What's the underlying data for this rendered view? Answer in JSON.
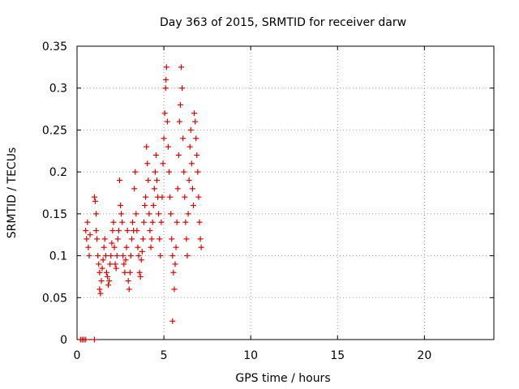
{
  "chart_data": {
    "type": "scatter",
    "title": "Day 363 of 2015, SRMTID for receiver darw",
    "xlabel": "GPS time / hours",
    "ylabel": "SRMTID / TECUs",
    "xlim": [
      0,
      24
    ],
    "ylim": [
      0,
      0.35
    ],
    "grid": true,
    "marker": "+",
    "xticks": [
      0,
      5,
      10,
      15,
      20
    ],
    "xtick_labels": [
      "0",
      "5",
      "10",
      "15",
      "20"
    ],
    "yticks": [
      0,
      0.05,
      0.1,
      0.15,
      0.2,
      0.25,
      0.3,
      0.35
    ],
    "ytick_labels": [
      "0",
      "0.05",
      "0.1",
      "0.15",
      "0.2",
      "0.25",
      "0.3",
      "0.35"
    ],
    "series": [
      {
        "name": "SRMTID",
        "color": "#e00000",
        "points": [
          [
            0.2,
            0.0
          ],
          [
            0.3,
            0.0
          ],
          [
            0.4,
            0.0
          ],
          [
            0.5,
            0.0
          ],
          [
            1.0,
            0.0
          ],
          [
            0.5,
            0.13
          ],
          [
            0.55,
            0.12
          ],
          [
            0.6,
            0.14
          ],
          [
            0.65,
            0.11
          ],
          [
            0.7,
            0.1
          ],
          [
            0.75,
            0.125
          ],
          [
            1.0,
            0.17
          ],
          [
            1.05,
            0.165
          ],
          [
            1.1,
            0.15
          ],
          [
            1.1,
            0.13
          ],
          [
            1.15,
            0.12
          ],
          [
            1.2,
            0.1
          ],
          [
            1.25,
            0.09
          ],
          [
            1.3,
            0.08
          ],
          [
            1.3,
            0.06
          ],
          [
            1.35,
            0.055
          ],
          [
            1.4,
            0.07
          ],
          [
            1.45,
            0.085
          ],
          [
            1.5,
            0.095
          ],
          [
            1.55,
            0.11
          ],
          [
            1.6,
            0.12
          ],
          [
            1.65,
            0.1
          ],
          [
            1.7,
            0.08
          ],
          [
            1.75,
            0.075
          ],
          [
            1.8,
            0.065
          ],
          [
            1.85,
            0.07
          ],
          [
            1.9,
            0.09
          ],
          [
            1.95,
            0.1
          ],
          [
            2.0,
            0.115
          ],
          [
            2.05,
            0.13
          ],
          [
            2.1,
            0.14
          ],
          [
            2.15,
            0.11
          ],
          [
            2.2,
            0.09
          ],
          [
            2.25,
            0.085
          ],
          [
            2.3,
            0.1
          ],
          [
            2.35,
            0.12
          ],
          [
            2.4,
            0.13
          ],
          [
            2.45,
            0.19
          ],
          [
            2.5,
            0.16
          ],
          [
            2.55,
            0.15
          ],
          [
            2.6,
            0.14
          ],
          [
            2.65,
            0.1
          ],
          [
            2.7,
            0.09
          ],
          [
            2.75,
            0.08
          ],
          [
            2.8,
            0.095
          ],
          [
            2.85,
            0.11
          ],
          [
            2.9,
            0.13
          ],
          [
            2.95,
            0.07
          ],
          [
            3.0,
            0.06
          ],
          [
            3.05,
            0.08
          ],
          [
            3.1,
            0.1
          ],
          [
            3.15,
            0.12
          ],
          [
            3.2,
            0.14
          ],
          [
            3.25,
            0.13
          ],
          [
            3.3,
            0.18
          ],
          [
            3.35,
            0.2
          ],
          [
            3.4,
            0.15
          ],
          [
            3.45,
            0.13
          ],
          [
            3.5,
            0.11
          ],
          [
            3.55,
            0.1
          ],
          [
            3.6,
            0.08
          ],
          [
            3.65,
            0.075
          ],
          [
            3.7,
            0.095
          ],
          [
            3.75,
            0.105
          ],
          [
            3.8,
            0.12
          ],
          [
            3.85,
            0.14
          ],
          [
            3.9,
            0.16
          ],
          [
            3.95,
            0.17
          ],
          [
            4.0,
            0.23
          ],
          [
            4.05,
            0.21
          ],
          [
            4.1,
            0.19
          ],
          [
            4.15,
            0.15
          ],
          [
            4.2,
            0.13
          ],
          [
            4.25,
            0.11
          ],
          [
            4.3,
            0.12
          ],
          [
            4.35,
            0.14
          ],
          [
            4.4,
            0.16
          ],
          [
            4.45,
            0.18
          ],
          [
            4.5,
            0.2
          ],
          [
            4.55,
            0.22
          ],
          [
            4.6,
            0.19
          ],
          [
            4.65,
            0.17
          ],
          [
            4.7,
            0.15
          ],
          [
            4.75,
            0.12
          ],
          [
            4.8,
            0.1
          ],
          [
            4.85,
            0.14
          ],
          [
            4.9,
            0.17
          ],
          [
            4.95,
            0.21
          ],
          [
            5.0,
            0.24
          ],
          [
            5.05,
            0.27
          ],
          [
            5.1,
            0.3
          ],
          [
            5.12,
            0.31
          ],
          [
            5.15,
            0.325
          ],
          [
            5.2,
            0.26
          ],
          [
            5.25,
            0.23
          ],
          [
            5.3,
            0.2
          ],
          [
            5.35,
            0.17
          ],
          [
            5.4,
            0.15
          ],
          [
            5.45,
            0.12
          ],
          [
            5.5,
            0.1
          ],
          [
            5.55,
            0.08
          ],
          [
            5.6,
            0.06
          ],
          [
            5.5,
            0.022
          ],
          [
            5.65,
            0.09
          ],
          [
            5.7,
            0.11
          ],
          [
            5.75,
            0.14
          ],
          [
            5.8,
            0.18
          ],
          [
            5.85,
            0.22
          ],
          [
            5.9,
            0.26
          ],
          [
            5.95,
            0.28
          ],
          [
            6.0,
            0.325
          ],
          [
            6.05,
            0.3
          ],
          [
            6.1,
            0.24
          ],
          [
            6.15,
            0.2
          ],
          [
            6.2,
            0.17
          ],
          [
            6.25,
            0.14
          ],
          [
            6.3,
            0.12
          ],
          [
            6.35,
            0.1
          ],
          [
            6.4,
            0.15
          ],
          [
            6.45,
            0.19
          ],
          [
            6.5,
            0.23
          ],
          [
            6.55,
            0.25
          ],
          [
            6.6,
            0.21
          ],
          [
            6.65,
            0.18
          ],
          [
            6.7,
            0.16
          ],
          [
            6.75,
            0.27
          ],
          [
            6.8,
            0.26
          ],
          [
            6.85,
            0.24
          ],
          [
            6.9,
            0.22
          ],
          [
            6.95,
            0.2
          ],
          [
            7.0,
            0.17
          ],
          [
            7.05,
            0.14
          ],
          [
            7.1,
            0.12
          ],
          [
            7.15,
            0.11
          ]
        ]
      }
    ]
  }
}
